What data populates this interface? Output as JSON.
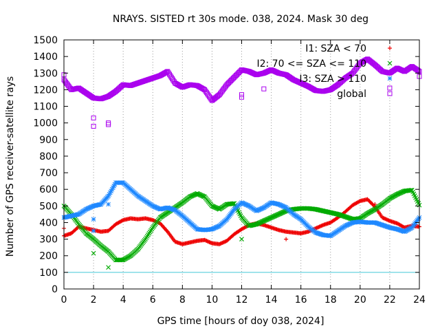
{
  "chart_data": {
    "type": "scatter",
    "title": "NRAYS. SISTED rt 30s mode. 038, 2024. Mask 30 deg",
    "xlabel": "GPS time [hours of doy 038, 2024]",
    "ylabel": "Number of GPS receiver-satellite rays",
    "xlim": [
      0,
      24
    ],
    "ylim": [
      0,
      1500
    ],
    "x_ticks": [
      "0",
      "2",
      "4",
      "6",
      "8",
      "10",
      "12",
      "14",
      "16",
      "18",
      "20",
      "22",
      "24"
    ],
    "y_ticks": [
      "0",
      "100",
      "200",
      "300",
      "400",
      "500",
      "600",
      "700",
      "800",
      "900",
      "1000",
      "1100",
      "1200",
      "1300",
      "1400",
      "1500"
    ],
    "reference_line": {
      "y": 100,
      "color": "#40c8d8"
    },
    "legend_position": "top-right",
    "series": [
      {
        "name": "I1: SZA < 70",
        "marker": "+",
        "color": "#ee0000",
        "x": [
          0,
          0.5,
          1,
          1.5,
          2,
          2.5,
          3,
          3.5,
          4,
          4.5,
          5,
          5.5,
          6,
          6.5,
          7,
          7.5,
          8,
          8.5,
          9,
          9.5,
          10,
          10.5,
          11,
          11.5,
          12,
          12.5,
          13,
          13.5,
          14,
          14.5,
          15,
          15.5,
          16,
          16.5,
          17,
          17.5,
          18,
          18.5,
          19,
          19.5,
          20,
          20.5,
          21,
          21.5,
          22,
          22.5,
          23,
          23.5,
          24
        ],
        "values": [
          320,
          335,
          375,
          365,
          355,
          345,
          350,
          390,
          415,
          425,
          420,
          425,
          415,
          395,
          345,
          285,
          270,
          280,
          290,
          295,
          275,
          270,
          290,
          330,
          360,
          385,
          395,
          385,
          370,
          355,
          345,
          340,
          335,
          345,
          365,
          385,
          400,
          430,
          465,
          505,
          530,
          540,
          495,
          430,
          410,
          395,
          370,
          380,
          375
        ]
      },
      {
        "name": "I2: 70 <= SZA <= 110",
        "marker": "x",
        "color": "#00aa00",
        "x": [
          0,
          0.5,
          1,
          1.5,
          2,
          2.5,
          3,
          3.5,
          4,
          4.5,
          5,
          5.5,
          6,
          6.5,
          7,
          7.5,
          8,
          8.5,
          9,
          9.5,
          10,
          10.5,
          11,
          11.5,
          12,
          12.5,
          13,
          13.5,
          14,
          14.5,
          15,
          15.5,
          16,
          16.5,
          17,
          17.5,
          18,
          18.5,
          19,
          19.5,
          20,
          20.5,
          21,
          21.5,
          22,
          22.5,
          23,
          23.5,
          24
        ],
        "values": [
          500,
          450,
          390,
          335,
          300,
          260,
          225,
          175,
          175,
          200,
          240,
          300,
          370,
          430,
          460,
          490,
          520,
          555,
          575,
          555,
          500,
          480,
          510,
          515,
          430,
          380,
          390,
          410,
          430,
          450,
          470,
          480,
          485,
          485,
          480,
          470,
          460,
          450,
          435,
          420,
          425,
          455,
          480,
          510,
          545,
          570,
          590,
          595,
          505
        ]
      },
      {
        "name": "I3: SZA > 110",
        "marker": "*",
        "color": "#1e88ff",
        "x": [
          0,
          0.5,
          1,
          1.5,
          2,
          2.5,
          3,
          3.5,
          4,
          4.5,
          5,
          5.5,
          6,
          6.5,
          7,
          7.5,
          8,
          8.5,
          9,
          9.5,
          10,
          10.5,
          11,
          11.5,
          12,
          12.5,
          13,
          13.5,
          14,
          14.5,
          15,
          15.5,
          16,
          16.5,
          17,
          17.5,
          18,
          18.5,
          19,
          19.5,
          20,
          20.5,
          21,
          21.5,
          22,
          22.5,
          23,
          23.5,
          24
        ],
        "values": [
          430,
          440,
          450,
          480,
          500,
          510,
          560,
          640,
          640,
          600,
          560,
          530,
          500,
          480,
          490,
          475,
          440,
          400,
          360,
          355,
          360,
          380,
          420,
          480,
          520,
          500,
          470,
          490,
          520,
          510,
          490,
          450,
          420,
          375,
          340,
          325,
          320,
          350,
          380,
          400,
          405,
          400,
          400,
          385,
          370,
          360,
          345,
          370,
          430
        ]
      },
      {
        "name": "global",
        "marker": "square",
        "color": "#aa00ee",
        "x": [
          0,
          0.5,
          1,
          1.5,
          2,
          2.5,
          3,
          3.5,
          4,
          4.5,
          5,
          5.5,
          6,
          6.5,
          7,
          7.5,
          8,
          8.5,
          9,
          9.5,
          10,
          10.5,
          11,
          11.5,
          12,
          12.5,
          13,
          13.5,
          14,
          14.5,
          15,
          15.5,
          16,
          16.5,
          17,
          17.5,
          18,
          18.5,
          19,
          19.5,
          20,
          20.5,
          21,
          21.5,
          22,
          22.5,
          23,
          23.5,
          24
        ],
        "values": [
          1260,
          1200,
          1210,
          1180,
          1150,
          1145,
          1160,
          1190,
          1230,
          1225,
          1240,
          1255,
          1270,
          1285,
          1310,
          1240,
          1215,
          1230,
          1225,
          1200,
          1135,
          1170,
          1230,
          1275,
          1320,
          1310,
          1290,
          1300,
          1320,
          1300,
          1290,
          1260,
          1240,
          1220,
          1195,
          1190,
          1200,
          1230,
          1270,
          1300,
          1360,
          1385,
          1350,
          1310,
          1300,
          1330,
          1310,
          1340,
          1310
        ]
      }
    ],
    "outliers": [
      {
        "series": "global",
        "x": [
          0,
          2,
          2,
          3,
          3,
          12,
          12,
          13.5,
          22,
          24
        ],
        "values": [
          1290,
          980,
          1030,
          990,
          1000,
          1155,
          1170,
          1205,
          1210,
          1280
        ]
      },
      {
        "series": "I2: 70 <= SZA <= 110",
        "x": [
          2,
          3,
          12
        ],
        "values": [
          215,
          130,
          300
        ]
      },
      {
        "series": "I3: SZA > 110",
        "x": [
          2,
          3,
          2
        ],
        "values": [
          350,
          510,
          420
        ]
      },
      {
        "series": "I1: SZA < 70",
        "x": [
          0,
          15,
          21
        ],
        "values": [
          365,
          300,
          510
        ]
      }
    ]
  }
}
